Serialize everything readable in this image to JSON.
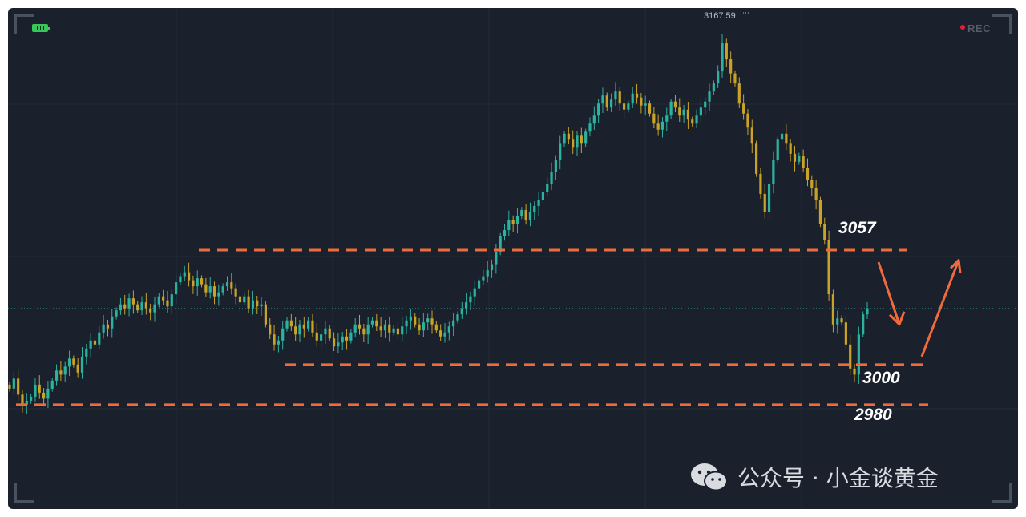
{
  "app": {
    "rec_label": "REC",
    "watermark": "公众号 · 小金谈黄金"
  },
  "icons": [
    "battery-icon",
    "rec-dot-icon",
    "wechat-icon"
  ],
  "colors": {
    "background": "#1a202c",
    "candle_up": "#2bb3a0",
    "candle_down": "#c9a227",
    "level_line": "#f06a3c",
    "arrow": "#f06a3c",
    "label": "#ffffff"
  },
  "chart_data": {
    "type": "candlestick",
    "title": "",
    "xlabel": "",
    "ylabel": "",
    "ylim": [
      2962,
      3176
    ],
    "grid": true,
    "legend": "none",
    "high_marker": {
      "label": "3167.59",
      "value": 3167.59
    },
    "annotations": [
      {
        "label": "3057",
        "value": 3057
      },
      {
        "label": "3000",
        "value": 3000
      },
      {
        "label": "2980",
        "value": 2980
      }
    ],
    "arrows": [
      {
        "direction": "down",
        "description": "expected pullback from 3057 toward 3000"
      },
      {
        "direction": "up",
        "description": "expected rebound from 3000"
      }
    ],
    "candles_close_path": [
      2988,
      2993,
      2985,
      2980,
      2982,
      2984,
      2990,
      2986,
      2983,
      2988,
      2992,
      2997,
      2995,
      2999,
      3003,
      3000,
      2996,
      3004,
      3008,
      3012,
      3010,
      3016,
      3020,
      3018,
      3024,
      3027,
      3030,
      3028,
      3033,
      3030,
      3027,
      3031,
      3028,
      3026,
      3030,
      3034,
      3032,
      3029,
      3035,
      3041,
      3044,
      3046,
      3042,
      3039,
      3043,
      3040,
      3036,
      3039,
      3034,
      3036,
      3039,
      3041,
      3038,
      3034,
      3031,
      3034,
      3028,
      3032,
      3029,
      3030,
      3020,
      3015,
      3010,
      3012,
      3018,
      3022,
      3019,
      3015,
      3020,
      3018,
      3022,
      3016,
      3012,
      3015,
      3018,
      3013,
      3009,
      3011,
      3014,
      3012,
      3016,
      3020,
      3018,
      3015,
      3020,
      3022,
      3019,
      3017,
      3020,
      3016,
      3018,
      3015,
      3019,
      3022,
      3024,
      3020,
      3017,
      3021,
      3023,
      3020,
      3017,
      3014,
      3016,
      3019,
      3022,
      3025,
      3028,
      3031,
      3034,
      3038,
      3042,
      3044,
      3047,
      3050,
      3056,
      3064,
      3067,
      3072,
      3070,
      3074,
      3077,
      3072,
      3076,
      3079,
      3082,
      3086,
      3090,
      3096,
      3102,
      3110,
      3115,
      3112,
      3108,
      3114,
      3110,
      3116,
      3120,
      3124,
      3130,
      3134,
      3128,
      3132,
      3136,
      3130,
      3127,
      3130,
      3135,
      3133,
      3129,
      3130,
      3125,
      3120,
      3117,
      3121,
      3124,
      3131,
      3128,
      3124,
      3127,
      3122,
      3120,
      3124,
      3128,
      3131,
      3136,
      3140,
      3146,
      3160,
      3152,
      3145,
      3140,
      3130,
      3125,
      3118,
      3110,
      3095,
      3085,
      3076,
      3090,
      3102,
      3112,
      3115,
      3110,
      3105,
      3101,
      3104,
      3098,
      3092,
      3088,
      3082,
      3070,
      3062,
      3035,
      3020,
      3023,
      3021,
      3010,
      2998,
      2995,
      3015,
      3025,
      3028
    ]
  }
}
